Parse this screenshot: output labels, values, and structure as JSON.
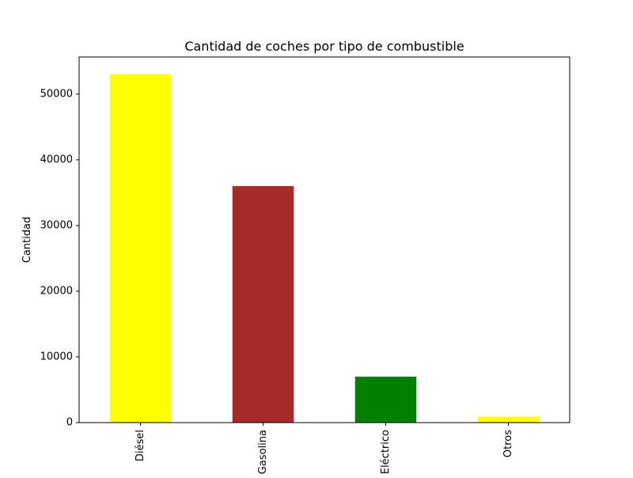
{
  "chart_data": {
    "type": "bar",
    "title": "Cantidad de coches por tipo de combustible",
    "xlabel": "",
    "ylabel": "Cantidad",
    "categories": [
      "Diésel",
      "Gasolina",
      "Eléctrico",
      "Otros"
    ],
    "values": [
      53000,
      36000,
      7000,
      900
    ],
    "colors": [
      "#ffff00",
      "#a52a2a",
      "#008000",
      "#ffff00"
    ],
    "ylim": [
      0,
      55650
    ],
    "yticks": [
      0,
      10000,
      20000,
      30000,
      40000,
      50000
    ],
    "ytick_labels": [
      "0",
      "10000",
      "20000",
      "30000",
      "40000",
      "50000"
    ],
    "grid": false,
    "legend": "none"
  }
}
